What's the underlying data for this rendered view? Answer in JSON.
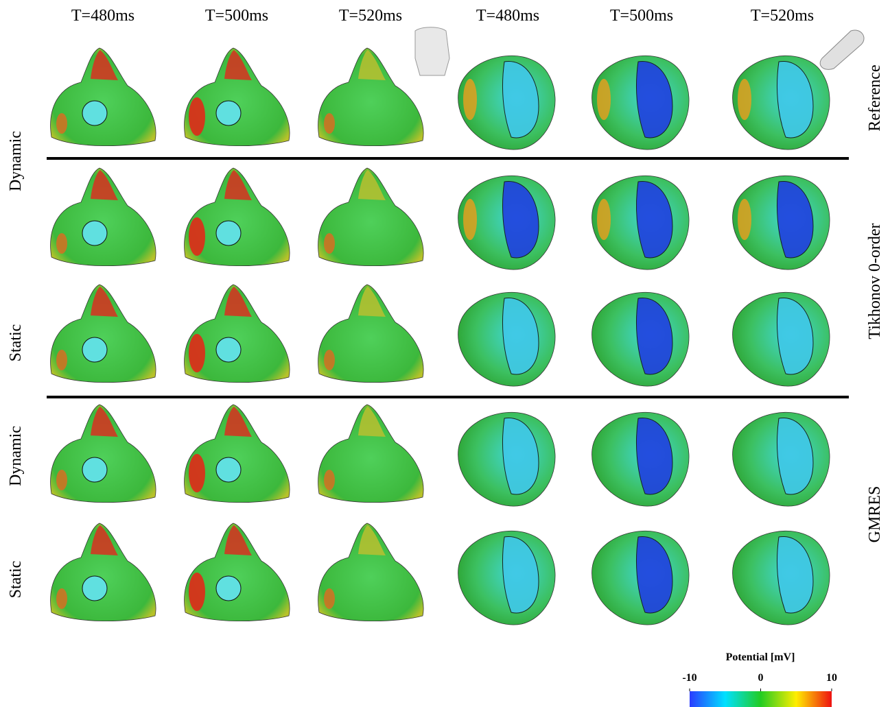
{
  "column_headers": [
    "T=480ms",
    "T=500ms",
    "T=520ms",
    "T=480ms",
    "T=500ms",
    "T=520ms"
  ],
  "row_labels": [
    "Dynamic",
    "Static",
    "Dynamic",
    "Static"
  ],
  "method_labels": [
    "Reference",
    "Tikhonov 0-order",
    "GMRES"
  ],
  "colorbar": {
    "title": "Potential [mV]",
    "range": [
      -10,
      10
    ],
    "ticks": [
      -10,
      0,
      10
    ]
  }
}
